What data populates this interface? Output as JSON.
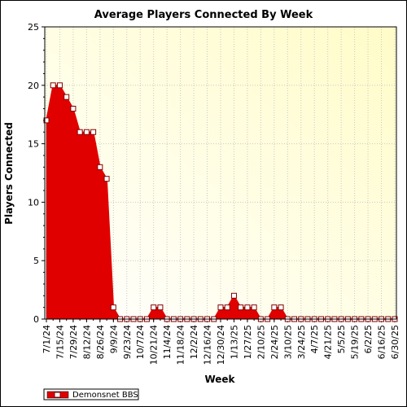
{
  "chart_data": {
    "type": "area",
    "title": "Average Players Connected By Week",
    "xlabel": "Week",
    "ylabel": "Players Connected",
    "ylim": [
      0,
      25
    ],
    "yticks": [
      0,
      5,
      10,
      15,
      20,
      25
    ],
    "grid": true,
    "legend_position": "bottom-left",
    "colors": {
      "series": "#e00000",
      "marker_fill": "#ffffff",
      "plot_bg_top_right": "#fffcc8",
      "plot_bg_bottom_left": "#ffffff",
      "grid": "#c8c8c8"
    },
    "x": [
      "7/1/24",
      "7/8/24",
      "7/15/24",
      "7/22/24",
      "7/29/24",
      "8/5/24",
      "8/12/24",
      "8/19/24",
      "8/26/24",
      "9/2/24",
      "9/9/24",
      "9/16/24",
      "9/23/24",
      "9/30/24",
      "10/7/24",
      "10/14/24",
      "10/21/24",
      "10/28/24",
      "11/4/24",
      "11/11/24",
      "11/18/24",
      "11/25/24",
      "12/2/24",
      "12/9/24",
      "12/16/24",
      "12/23/24",
      "12/30/24",
      "1/6/25",
      "1/13/25",
      "1/20/25",
      "1/27/25",
      "2/3/25",
      "2/10/25",
      "2/17/25",
      "2/24/25",
      "3/3/25",
      "3/10/25",
      "3/17/25",
      "3/24/25",
      "3/31/25",
      "4/7/25",
      "4/14/25",
      "4/21/25",
      "4/28/25",
      "5/5/25",
      "5/12/25",
      "5/19/25",
      "5/26/25",
      "6/2/25",
      "6/9/25",
      "6/16/25",
      "6/23/25",
      "6/30/25"
    ],
    "x_tick_labels": [
      "7/1/24",
      "7/15/24",
      "7/29/24",
      "8/12/24",
      "8/26/24",
      "9/9/24",
      "9/23/24",
      "10/7/24",
      "10/21/24",
      "11/4/24",
      "11/18/24",
      "12/2/24",
      "12/16/24",
      "12/30/24",
      "1/13/25",
      "1/27/25",
      "2/10/25",
      "2/24/25",
      "3/10/25",
      "3/24/25",
      "4/7/25",
      "4/21/25",
      "5/5/25",
      "5/19/25",
      "6/2/25",
      "6/16/25",
      "6/30/25"
    ],
    "series": [
      {
        "name": "Demonsnet BBS",
        "values": [
          17,
          20,
          20,
          19,
          18,
          16,
          16,
          16,
          13,
          12,
          1,
          0,
          0,
          0,
          0,
          0,
          1,
          1,
          0,
          0,
          0,
          0,
          0,
          0,
          0,
          0,
          1,
          1,
          2,
          1,
          1,
          1,
          0,
          0,
          1,
          1,
          0,
          0,
          0,
          0,
          0,
          0,
          0,
          0,
          0,
          0,
          0,
          0,
          0,
          0,
          0,
          0,
          0
        ]
      }
    ]
  }
}
